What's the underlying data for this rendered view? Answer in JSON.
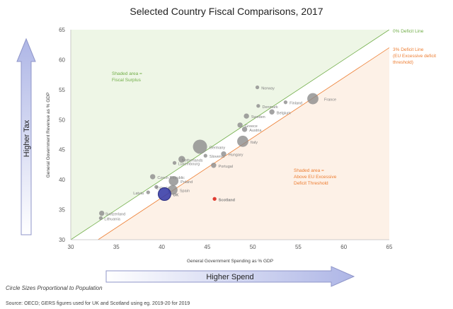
{
  "chart_data": {
    "type": "scatter",
    "title": "Selected Country Fiscal Comparisons, 2017",
    "xlabel": "General Government Spending as % GDP",
    "ylabel": "General Government Revenue as % GDP",
    "xlim": [
      30,
      65
    ],
    "ylim": [
      30,
      65
    ],
    "xticks": [
      30,
      35,
      40,
      45,
      50,
      55,
      60,
      65
    ],
    "yticks": [
      30,
      35,
      40,
      45,
      50,
      55,
      60,
      65
    ],
    "bubble_size": "population",
    "points": [
      {
        "label": "Norway",
        "x": 50.5,
        "y": 55.4,
        "size": 1
      },
      {
        "label": "Finland",
        "x": 53.6,
        "y": 52.9,
        "size": 1
      },
      {
        "label": "France",
        "x": 56.6,
        "y": 53.5,
        "size": 6
      },
      {
        "label": "Denmark",
        "x": 50.6,
        "y": 52.3,
        "size": 1
      },
      {
        "label": "Belgium",
        "x": 52.1,
        "y": 51.3,
        "size": 2
      },
      {
        "label": "Sweden",
        "x": 49.3,
        "y": 50.6,
        "size": 2
      },
      {
        "label": "Greece",
        "x": 48.6,
        "y": 49.1,
        "size": 2
      },
      {
        "label": "Austria",
        "x": 49.1,
        "y": 48.4,
        "size": 2
      },
      {
        "label": "Italy",
        "x": 48.9,
        "y": 46.4,
        "size": 6
      },
      {
        "label": "Germany",
        "x": 44.2,
        "y": 45.5,
        "size": 8
      },
      {
        "label": "Netherlands",
        "x": 42.2,
        "y": 43.4,
        "size": 3
      },
      {
        "label": "Slovenia",
        "x": 44.8,
        "y": 44.0,
        "size": 1
      },
      {
        "label": "Hungary",
        "x": 46.8,
        "y": 44.3,
        "size": 2
      },
      {
        "label": "Luxembourg",
        "x": 41.4,
        "y": 42.8,
        "size": 1
      },
      {
        "label": "Portugal",
        "x": 45.7,
        "y": 42.4,
        "size": 2
      },
      {
        "label": "Czech Republic",
        "x": 39.0,
        "y": 40.5,
        "size": 2
      },
      {
        "label": "Poland",
        "x": 41.3,
        "y": 39.8,
        "size": 5
      },
      {
        "label": "Estonia",
        "x": 39.4,
        "y": 38.8,
        "size": 1
      },
      {
        "label": "Spain",
        "x": 41.2,
        "y": 38.3,
        "size": 5
      },
      {
        "label": "Latvia",
        "x": 38.5,
        "y": 37.9,
        "size": 1
      },
      {
        "label": "UK",
        "x": 40.3,
        "y": 37.6,
        "size": 7,
        "highlight": "uk"
      },
      {
        "label": "Scotland",
        "x": 45.8,
        "y": 36.8,
        "size": 1,
        "highlight": "scotland"
      },
      {
        "label": "Switzerland",
        "x": 33.4,
        "y": 34.4,
        "size": 2
      },
      {
        "label": "Lithuania",
        "x": 33.3,
        "y": 33.6,
        "size": 1
      }
    ],
    "reference_lines": [
      {
        "label": "0% Deficit Line",
        "offset": 0,
        "color": "#70ad47"
      },
      {
        "label": "3% Deficit Line (EU Excessive deficit threshold)",
        "offset": -3,
        "color": "#ed7d31"
      }
    ],
    "annotations": {
      "surplus": [
        "Shaded area =",
        "Fiscal Surplus"
      ],
      "deficit": [
        "Shaded area =",
        "Above EU Excessive",
        "Deficit Threshold"
      ],
      "zero_line": [
        "0% Deficit Line"
      ],
      "three_line": [
        "3% Deficit Line",
        "(EU Excessive deficit",
        "threshold)"
      ]
    }
  },
  "arrows": {
    "up": "Higher Tax",
    "right": "Higher Spend"
  },
  "note": "Circle Sizes Proportional to Population",
  "source": "Source: OECD; GERS figures used for UK and Scotland using eg. 2019-20 for 2019",
  "colors": {
    "surplus_fill": "#eef6e6",
    "deficit_fill": "#fdf1e7",
    "point": "#8c8c8c",
    "uk": "#3b3fa8",
    "scotland": "#e03c31",
    "arrow_fill": "#c9cfee",
    "arrow_stroke": "#8f96c9"
  }
}
